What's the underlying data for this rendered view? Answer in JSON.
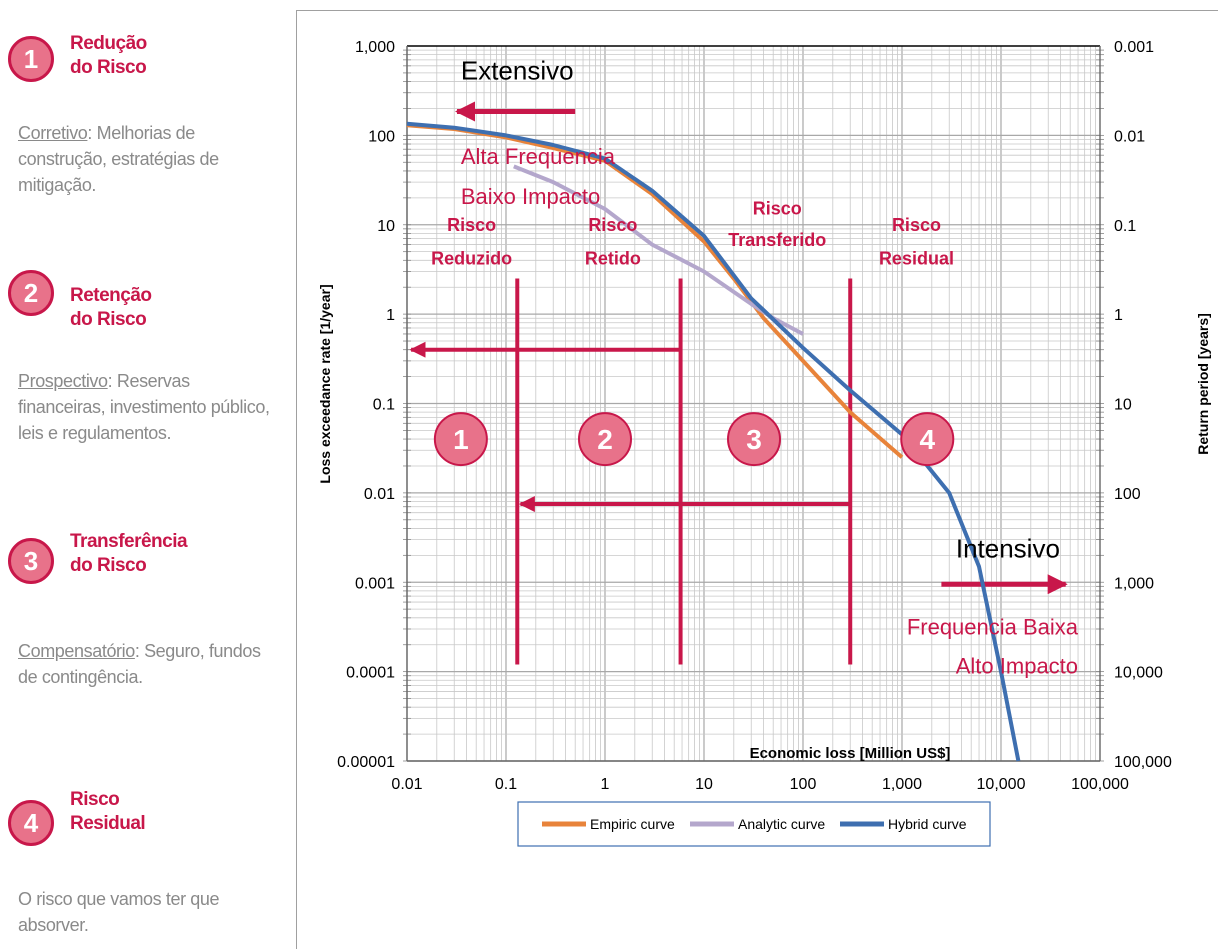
{
  "sidebar": {
    "items": [
      {
        "number": "1",
        "title_line1": "Redução",
        "title_line2": "do Risco",
        "desc_lead": "Corretivo",
        "desc_rest": ": Melhorias de construção, estratégias de mitigação."
      },
      {
        "number": "2",
        "title_line1": "Retenção",
        "title_line2": "do Risco",
        "desc_lead": "Prospectivo",
        "desc_rest": ": Reservas financeiras, investimento público, leis e regulamentos."
      },
      {
        "number": "3",
        "title_line1": "Transferência",
        "title_line2": "do Risco",
        "desc_lead": "Compensatório",
        "desc_rest": ": Seguro, fundos de contingência."
      },
      {
        "number": "4",
        "title_line1": "Risco",
        "title_line2": "Residual",
        "desc_lead": "",
        "desc_rest": "O risco que vamos ter que absorver."
      }
    ]
  },
  "colors": {
    "accent": "#c8174a",
    "badge_fill": "#e8728a",
    "empiric": "#e8833a",
    "analytic": "#b4a7cc",
    "hybrid": "#3e6fb0",
    "grid": "#c8c8c8"
  },
  "chart_data": {
    "type": "line",
    "xscale": "log",
    "yscale": "log",
    "xlim": [
      0.01,
      100000
    ],
    "ylim": [
      1e-05,
      1000
    ],
    "xlabel": "Economic loss [Million US$]",
    "ylabel": "Loss exceedance rate [1/year]",
    "y2label": "Return period [years]",
    "x_ticks": [
      "0.01",
      "0.1",
      "1",
      "10",
      "100",
      "1,000",
      "10,000",
      "100,000"
    ],
    "y_ticks": [
      "1,000",
      "100",
      "10",
      "1",
      "0.1",
      "0.01",
      "0.001",
      "0.0001",
      "0.00001"
    ],
    "y2_ticks": [
      "0.001",
      "0.01",
      "0.1",
      "1",
      "10",
      "100",
      "1,000",
      "10,000",
      "100,000"
    ],
    "grid": true,
    "legend_position": "bottom-center",
    "series": [
      {
        "name": "Empiric curve",
        "x": [
          0.01,
          0.03,
          0.1,
          0.3,
          1,
          3,
          10,
          20,
          40,
          100,
          300,
          1000
        ],
        "y": [
          130,
          118,
          95,
          72,
          52,
          22,
          6.5,
          2.5,
          0.9,
          0.3,
          0.08,
          0.025
        ]
      },
      {
        "name": "Analytic curve",
        "x": [
          0.12,
          0.3,
          1,
          3,
          10,
          30,
          50,
          100
        ],
        "y": [
          45,
          30,
          15,
          6,
          3,
          1.3,
          0.9,
          0.6
        ]
      },
      {
        "name": "Hybrid curve",
        "x": [
          0.01,
          0.03,
          0.1,
          0.3,
          1,
          3,
          10,
          30,
          100,
          300,
          1000,
          3000,
          6000,
          10000,
          15000
        ],
        "y": [
          135,
          122,
          100,
          78,
          55,
          24,
          7.5,
          1.5,
          0.42,
          0.14,
          0.045,
          0.01,
          0.0015,
          0.0001,
          1e-05
        ]
      }
    ],
    "zone_labels": [
      {
        "line1": "Risco",
        "line2": "Reduzido"
      },
      {
        "line1": "Risco",
        "line2": "Retido"
      },
      {
        "line1": "Risco",
        "line2": "Transferido"
      },
      {
        "line1": "Risco",
        "line2": "Residual"
      }
    ],
    "zone_numbers": [
      "1",
      "2",
      "3",
      "4"
    ],
    "annotations": {
      "extensivo": "Extensivo",
      "intensivo": "Intensivo",
      "alta_line1": "Alta Frequencia",
      "alta_line2": "Baixo Impacto",
      "freq_line1": "Frequencia Baixa",
      "freq_line2": "Alto Impacto"
    }
  }
}
